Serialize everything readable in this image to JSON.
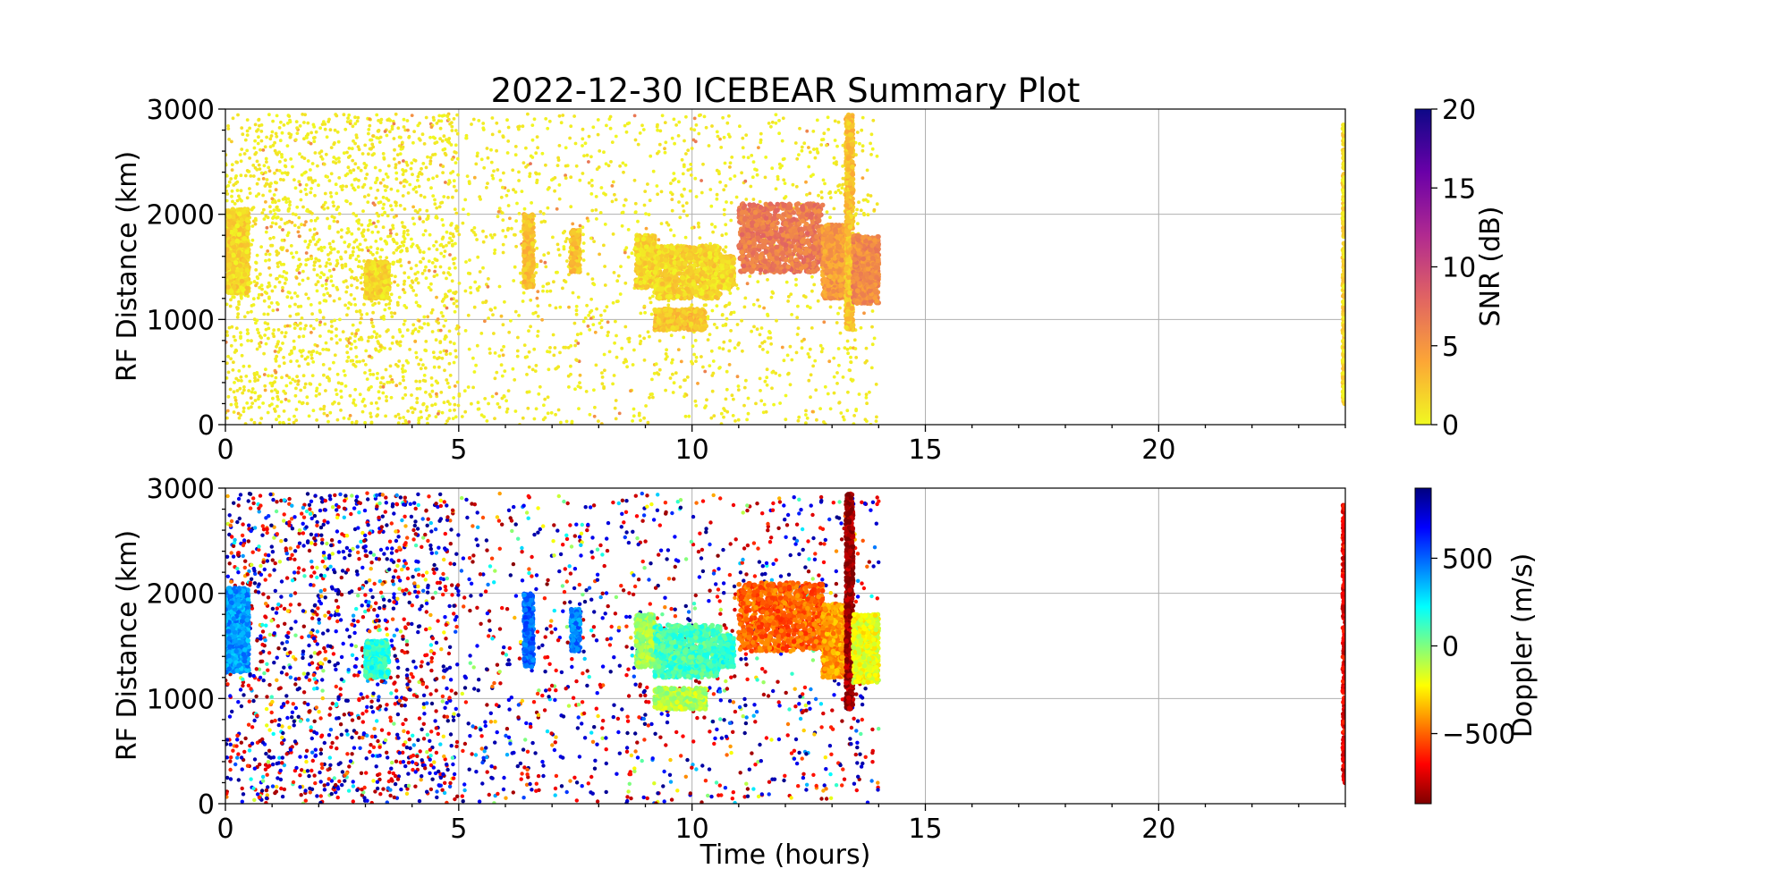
{
  "chart_data": {
    "title": "2022-12-30 ICEBEAR Summary Plot",
    "xlabel": "Time (hours)",
    "xlim": [
      0,
      24
    ],
    "x_ticks": [
      0,
      5,
      10,
      15,
      20
    ],
    "x_tick_labels": [
      "0",
      "5",
      "10",
      "15",
      "20"
    ],
    "panels": [
      {
        "type": "scatter",
        "ylabel": "RF Distance (km)",
        "ylim": [
          0,
          3000
        ],
        "y_ticks": [
          0,
          1000,
          2000,
          3000
        ],
        "y_tick_labels": [
          "0",
          "1000",
          "2000",
          "3000"
        ],
        "grid": true,
        "colorbar": {
          "label": "SNR (dB)",
          "range": [
            0,
            20
          ],
          "ticks": [
            0,
            5,
            10,
            15,
            20
          ],
          "tick_labels": [
            "0",
            "5",
            "10",
            "15",
            "20"
          ],
          "colormap": "plasma_r",
          "stops": [
            "#f0f921",
            "#fca636",
            "#e16462",
            "#b12a90",
            "#6a00a8",
            "#0d0887"
          ]
        },
        "data_extent_hours": [
          0,
          14,
          24
        ],
        "background_points_color_value": 0,
        "features": [
          {
            "x": [
              0,
              0.5
            ],
            "y": [
              1250,
              2050
            ],
            "c": 1
          },
          {
            "x": [
              3.0,
              3.5
            ],
            "y": [
              1200,
              1550
            ],
            "c": 1
          },
          {
            "x": [
              6.4,
              6.6
            ],
            "y": [
              1300,
              2000
            ],
            "c": 2
          },
          {
            "x": [
              7.4,
              7.6
            ],
            "y": [
              1450,
              1850
            ],
            "c": 2
          },
          {
            "x": [
              8.8,
              9.2
            ],
            "y": [
              1300,
              1800
            ],
            "c": 1
          },
          {
            "x": [
              9.2,
              10.6
            ],
            "y": [
              1200,
              1700
            ],
            "c": 1
          },
          {
            "x": [
              9.2,
              10.3
            ],
            "y": [
              900,
              1100
            ],
            "c": 2
          },
          {
            "x": [
              10.6,
              10.9
            ],
            "y": [
              1300,
              1600
            ],
            "c": 1
          },
          {
            "x": [
              11.0,
              12.8
            ],
            "y": [
              1450,
              2100
            ],
            "c": 6
          },
          {
            "x": [
              12.8,
              13.3
            ],
            "y": [
              1200,
              1900
            ],
            "c": 4
          },
          {
            "x": [
              13.3,
              13.45
            ],
            "y": [
              900,
              2950
            ],
            "c": 2
          },
          {
            "x": [
              13.45,
              14.0
            ],
            "y": [
              1150,
              1800
            ],
            "c": 5
          },
          {
            "x": [
              23.95,
              24.0
            ],
            "y": [
              200,
              2850
            ],
            "c": 1
          }
        ]
      },
      {
        "type": "scatter",
        "ylabel": "RF Distance (km)",
        "ylim": [
          0,
          3000
        ],
        "y_ticks": [
          0,
          1000,
          2000,
          3000
        ],
        "y_tick_labels": [
          "0",
          "1000",
          "2000",
          "3000"
        ],
        "grid": true,
        "colorbar": {
          "label": "Doppler (m/s)",
          "range": [
            -900,
            900
          ],
          "ticks": [
            -500,
            0,
            500
          ],
          "tick_labels": [
            "−500",
            "0",
            "500"
          ],
          "colormap": "jet_r",
          "stops": [
            "#7f0000",
            "#ff0000",
            "#ff7f00",
            "#ffff00",
            "#7fff7f",
            "#00ffff",
            "#007fff",
            "#0000ff",
            "#00007f"
          ]
        },
        "data_extent_hours": [
          0,
          14,
          24
        ],
        "background_points_color_value": "random",
        "features": [
          {
            "x": [
              0,
              0.5
            ],
            "y": [
              1250,
              2050
            ],
            "c": 400
          },
          {
            "x": [
              3.0,
              3.5
            ],
            "y": [
              1200,
              1550
            ],
            "c": 150
          },
          {
            "x": [
              6.4,
              6.6
            ],
            "y": [
              1300,
              2000
            ],
            "c": 500
          },
          {
            "x": [
              7.4,
              7.6
            ],
            "y": [
              1450,
              1850
            ],
            "c": 450
          },
          {
            "x": [
              8.8,
              9.2
            ],
            "y": [
              1300,
              1800
            ],
            "c": -50
          },
          {
            "x": [
              9.2,
              10.6
            ],
            "y": [
              1200,
              1700
            ],
            "c": 100
          },
          {
            "x": [
              9.2,
              10.3
            ],
            "y": [
              900,
              1100
            ],
            "c": -100
          },
          {
            "x": [
              10.6,
              10.9
            ],
            "y": [
              1300,
              1600
            ],
            "c": 150
          },
          {
            "x": [
              11.0,
              12.8
            ],
            "y": [
              1450,
              2100
            ],
            "c": -500
          },
          {
            "x": [
              12.8,
              13.3
            ],
            "y": [
              1200,
              1900
            ],
            "c": -400
          },
          {
            "x": [
              13.3,
              13.45
            ],
            "y": [
              900,
              2950
            ],
            "c": -850
          },
          {
            "x": [
              13.45,
              14.0
            ],
            "y": [
              1150,
              1800
            ],
            "c": -200
          },
          {
            "x": [
              23.95,
              24.0
            ],
            "y": [
              200,
              2850
            ],
            "c": -700
          }
        ]
      }
    ]
  }
}
